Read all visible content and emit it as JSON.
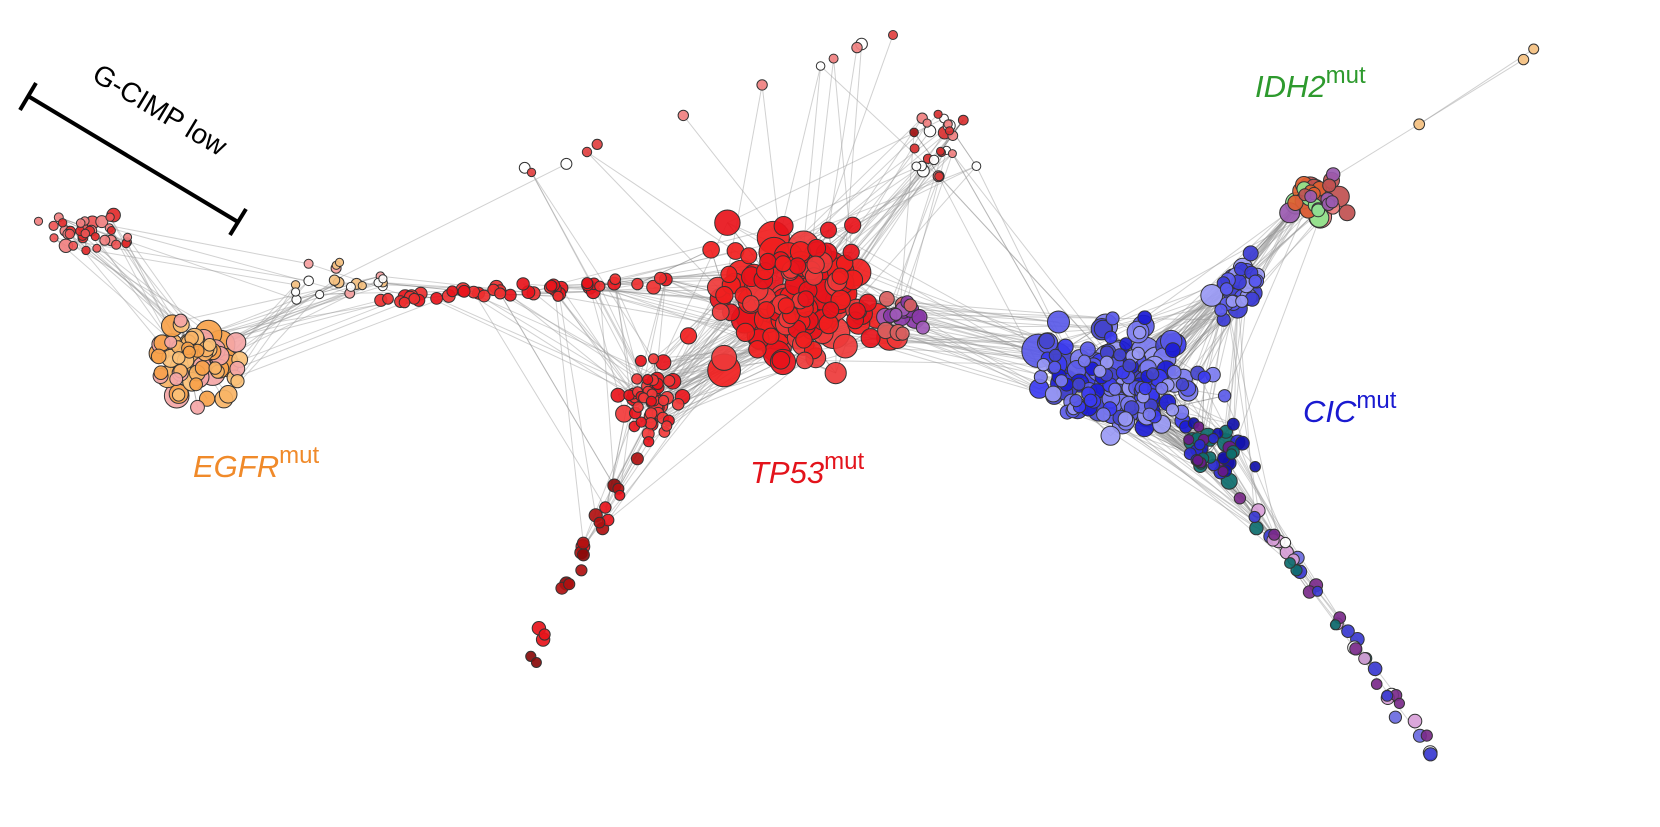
{
  "annotation": "G-CIMP low",
  "labels": [
    {
      "gene": "EGFR",
      "suffix": "mut"
    },
    {
      "gene": "TP53",
      "suffix": "mut"
    },
    {
      "gene": "CIC",
      "suffix": "mut"
    },
    {
      "gene": "IDH2",
      "suffix": "mut"
    }
  ]
}
